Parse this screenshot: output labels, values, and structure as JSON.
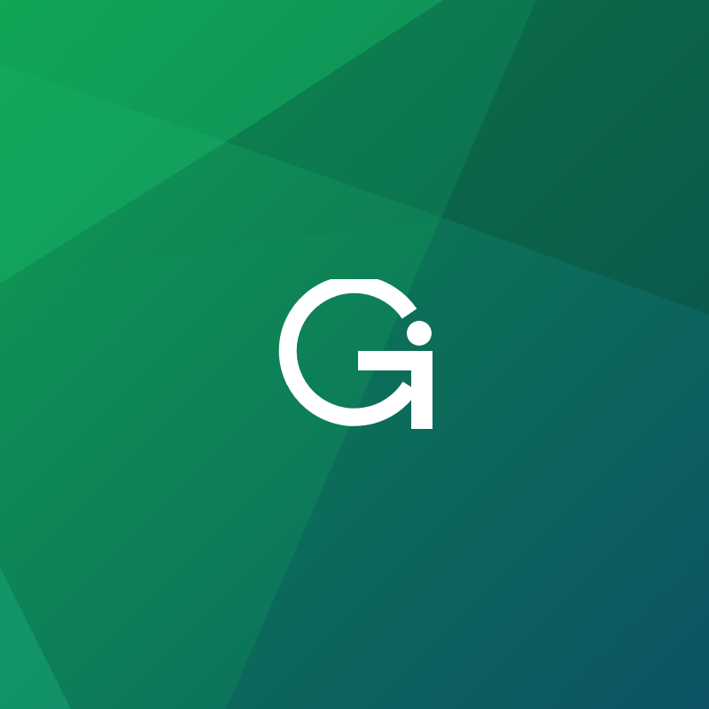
{
  "logo": {
    "lettering": "Gi",
    "icon": "gi-monogram-icon",
    "color": "#ffffff"
  },
  "background": {
    "style": "faceted geometric gradient",
    "colors": {
      "top_left": "#10a052",
      "center": "#0d7b56",
      "top_right": "#0b5a45",
      "bottom_right": "#0b5468",
      "bottom_left": "#12a070"
    }
  }
}
